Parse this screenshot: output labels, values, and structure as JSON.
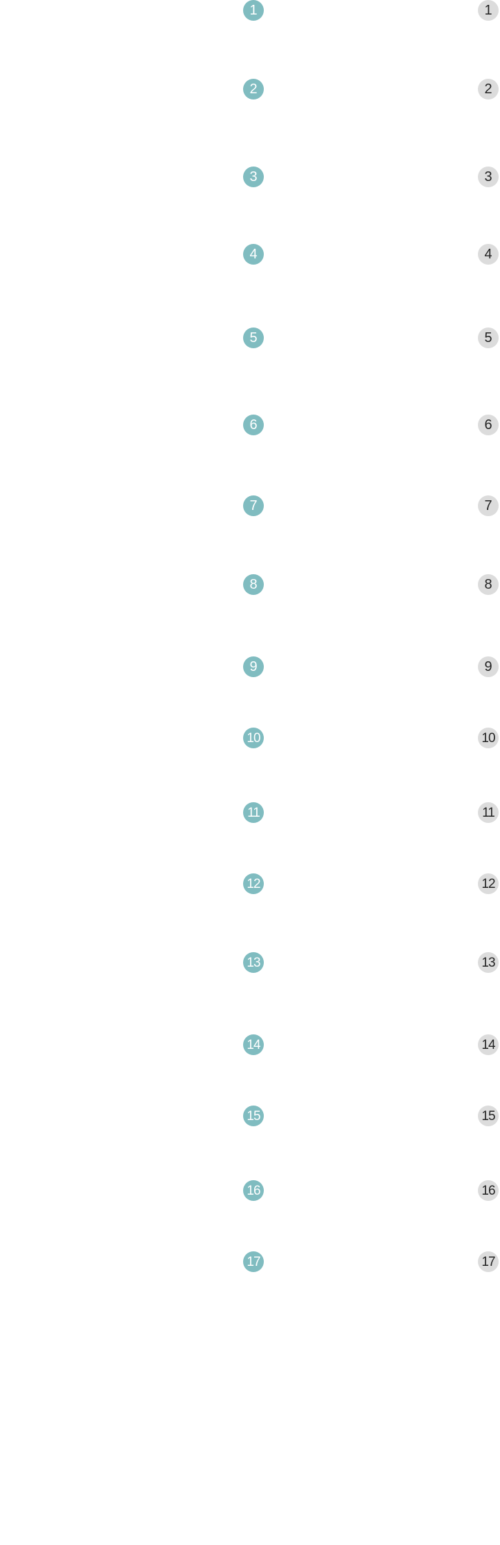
{
  "colors": {
    "left_badge_bg": "#80bcc0",
    "left_badge_text": "#ffffff",
    "right_badge_bg": "#dcdcdc",
    "right_badge_text": "#222222",
    "page_bg": "#ffffff"
  },
  "rows": [
    {
      "left": "1",
      "right": "1"
    },
    {
      "left": "2",
      "right": "2"
    },
    {
      "left": "3",
      "right": "3"
    },
    {
      "left": "4",
      "right": "4"
    },
    {
      "left": "5",
      "right": "5"
    },
    {
      "left": "6",
      "right": "6"
    },
    {
      "left": "7",
      "right": "7"
    },
    {
      "left": "8",
      "right": "8"
    },
    {
      "left": "9",
      "right": "9"
    },
    {
      "left": "10",
      "right": "10"
    },
    {
      "left": "11",
      "right": "11"
    },
    {
      "left": "12",
      "right": "12"
    },
    {
      "left": "13",
      "right": "13"
    },
    {
      "left": "14",
      "right": "14"
    },
    {
      "left": "15",
      "right": "15"
    },
    {
      "left": "16",
      "right": "16"
    },
    {
      "left": "17",
      "right": "17"
    }
  ]
}
